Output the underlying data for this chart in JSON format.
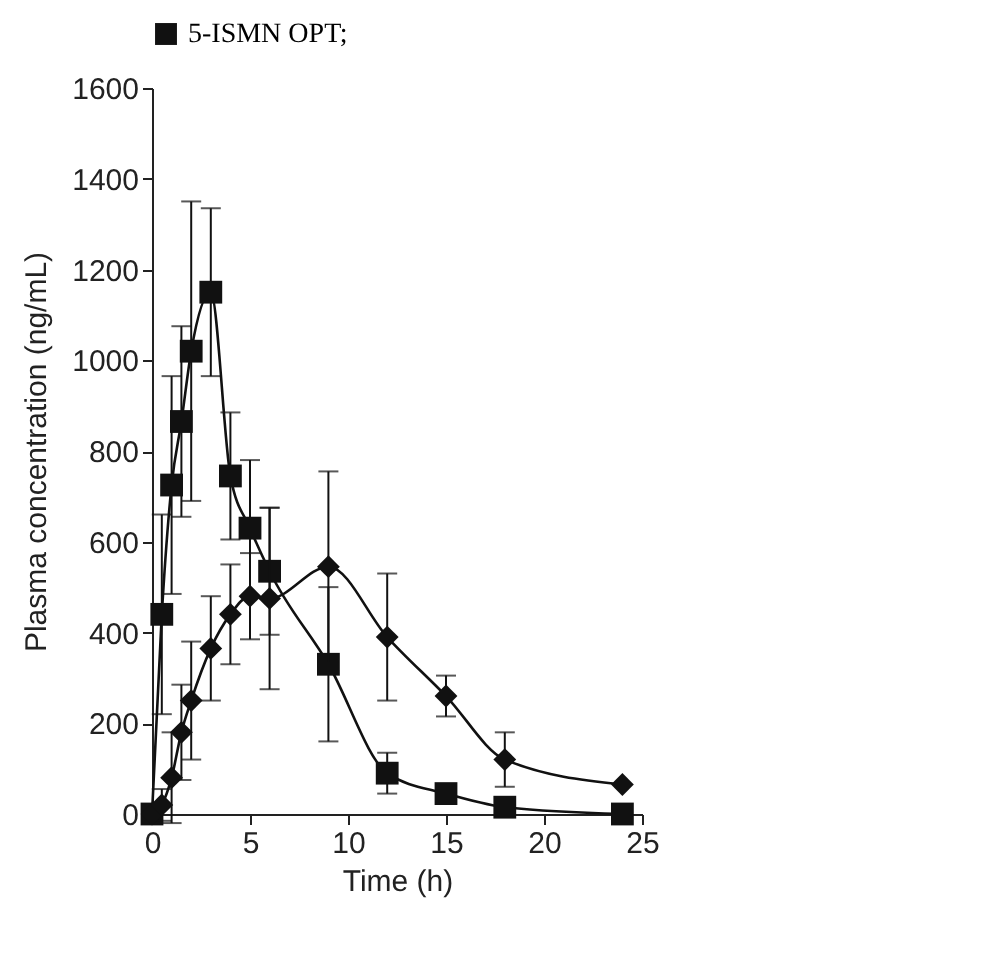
{
  "chart_data": {
    "type": "line",
    "xlabel": "Time (h)",
    "ylabel": "Plasma concentration (ng/mL)",
    "x": [
      0,
      0.5,
      1,
      1.5,
      2,
      3,
      4,
      5,
      6,
      9,
      12,
      15,
      18,
      24
    ],
    "series": [
      {
        "name": "5-ISMN OPT;",
        "color": "#111111",
        "marker": "square",
        "values": [
          0,
          440,
          725,
          865,
          1020,
          1150,
          745,
          630,
          535,
          330,
          90,
          45,
          15,
          0
        ],
        "errors": [
          null,
          220,
          240,
          210,
          330,
          185,
          140,
          150,
          140,
          170,
          45,
          20,
          10,
          null
        ]
      },
      {
        "color": "#111111",
        "marker": "diamond",
        "values": [
          0,
          20,
          80,
          180,
          250,
          365,
          440,
          480,
          475,
          545,
          390,
          260,
          120,
          65
        ],
        "errors": [
          null,
          35,
          100,
          105,
          130,
          115,
          110,
          95,
          200,
          210,
          140,
          45,
          60,
          null
        ]
      }
    ],
    "xlim": [
      0,
      25
    ],
    "xticks": [
      0,
      5,
      10,
      15,
      20,
      25
    ],
    "ylim": [
      0,
      1600
    ],
    "yticks": [
      0,
      200,
      400,
      600,
      800,
      1000,
      1200,
      1400,
      1600
    ],
    "grid": false,
    "legend": "top",
    "line_style": "solid"
  }
}
